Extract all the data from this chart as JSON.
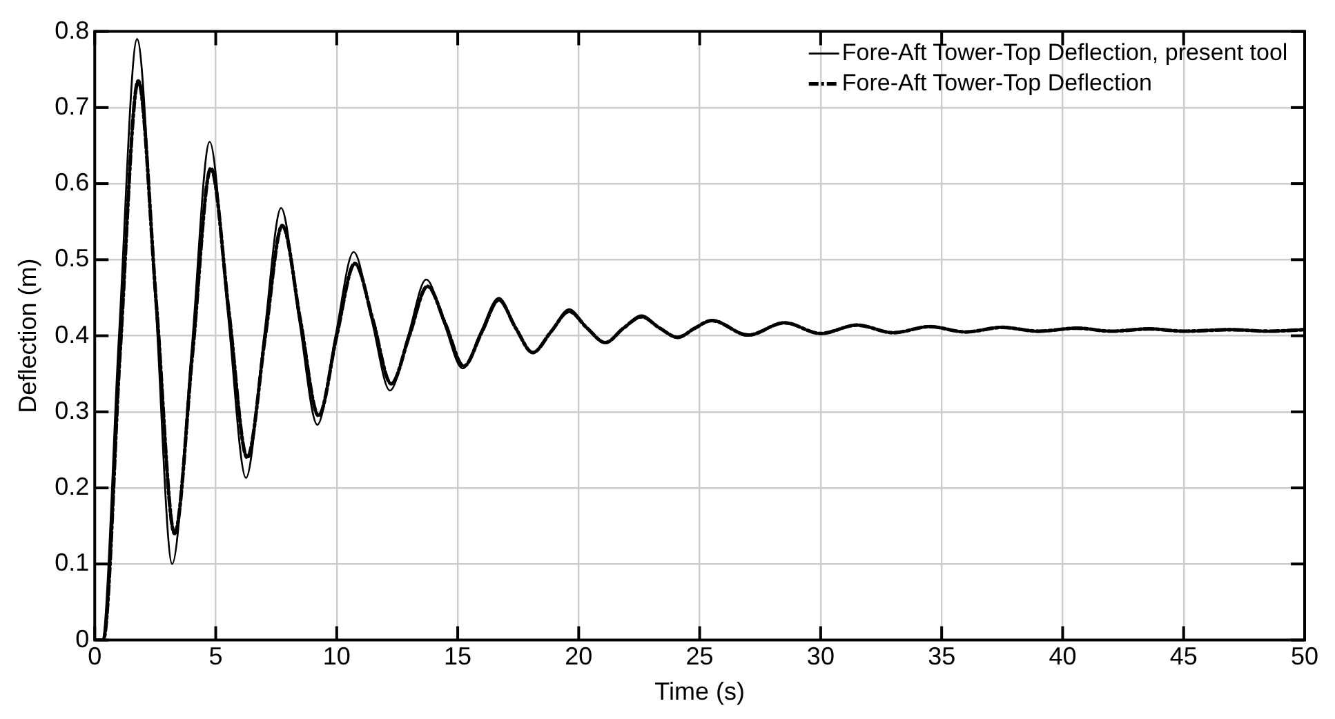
{
  "chart_data": {
    "type": "line",
    "xlabel": "Time (s)",
    "ylabel": "Deflection (m)",
    "xlim": [
      0,
      50
    ],
    "xticks": [
      0,
      5,
      10,
      15,
      20,
      25,
      30,
      35,
      40,
      45,
      50
    ],
    "ylim": [
      0,
      0.8
    ],
    "yticks": [
      0,
      0.1,
      0.2,
      0.3,
      0.4,
      0.5,
      0.6,
      0.7,
      0.8
    ],
    "grid": true,
    "legend": "top right",
    "marker": "none",
    "series": [
      {
        "name": "Fore-Aft Tower-Top Deflection, present tool",
        "color": "#000000",
        "line_style": "solid",
        "x": [
          0,
          0.3,
          1.0,
          1.75,
          2.5,
          3.2,
          4.0,
          4.75,
          5.5,
          6.25,
          7.0,
          7.7,
          8.45,
          9.2,
          9.95,
          10.7,
          11.45,
          12.2,
          12.95,
          13.7,
          14.45,
          15.2,
          15.95,
          16.7,
          17.4,
          18.1,
          18.85,
          19.6,
          20.35,
          21.1,
          21.85,
          22.6,
          23.35,
          24.1,
          24.8,
          25.5,
          27.0,
          28.5,
          30.0,
          31.5,
          33.0,
          34.5,
          36.0,
          37.5,
          39.0,
          40.6,
          42.0,
          43.6,
          45.0,
          47.0,
          48.5,
          50.0
        ],
        "values": [
          0,
          0,
          0.4,
          0.79,
          0.45,
          0.1,
          0.38,
          0.655,
          0.43,
          0.213,
          0.4,
          0.568,
          0.42,
          0.283,
          0.4,
          0.51,
          0.42,
          0.328,
          0.4,
          0.474,
          0.415,
          0.357,
          0.405,
          0.45,
          0.41,
          0.377,
          0.405,
          0.435,
          0.41,
          0.39,
          0.41,
          0.427,
          0.41,
          0.397,
          0.41,
          0.421,
          0.4,
          0.418,
          0.402,
          0.415,
          0.404,
          0.413,
          0.405,
          0.412,
          0.405,
          0.411,
          0.406,
          0.41,
          0.406,
          0.409,
          0.406,
          0.409
        ]
      },
      {
        "name": "Fore-Aft Tower-Top Deflection",
        "color": "#000000",
        "line_style": "dashed",
        "x": [
          0,
          0.35,
          1.05,
          1.8,
          2.55,
          3.3,
          4.05,
          4.8,
          5.55,
          6.3,
          7.05,
          7.75,
          8.5,
          9.25,
          10.0,
          10.75,
          11.5,
          12.25,
          13.0,
          13.75,
          14.5,
          15.25,
          16.0,
          16.7,
          17.4,
          18.1,
          18.85,
          19.6,
          20.35,
          21.1,
          21.85,
          22.6,
          23.35,
          24.1,
          24.8,
          25.5,
          27.0,
          28.5,
          30.0,
          31.5,
          33.0,
          34.5,
          36.0,
          37.5,
          39.0,
          40.6,
          42.0,
          43.6,
          45.0,
          47.0,
          48.5,
          50.0
        ],
        "values": [
          0,
          0,
          0.38,
          0.735,
          0.44,
          0.14,
          0.38,
          0.62,
          0.43,
          0.24,
          0.4,
          0.545,
          0.42,
          0.295,
          0.4,
          0.495,
          0.42,
          0.337,
          0.4,
          0.465,
          0.415,
          0.36,
          0.405,
          0.447,
          0.41,
          0.378,
          0.405,
          0.432,
          0.41,
          0.391,
          0.41,
          0.425,
          0.41,
          0.398,
          0.41,
          0.42,
          0.401,
          0.417,
          0.403,
          0.414,
          0.404,
          0.412,
          0.405,
          0.411,
          0.406,
          0.41,
          0.406,
          0.409,
          0.406,
          0.408,
          0.406,
          0.408
        ]
      }
    ]
  }
}
